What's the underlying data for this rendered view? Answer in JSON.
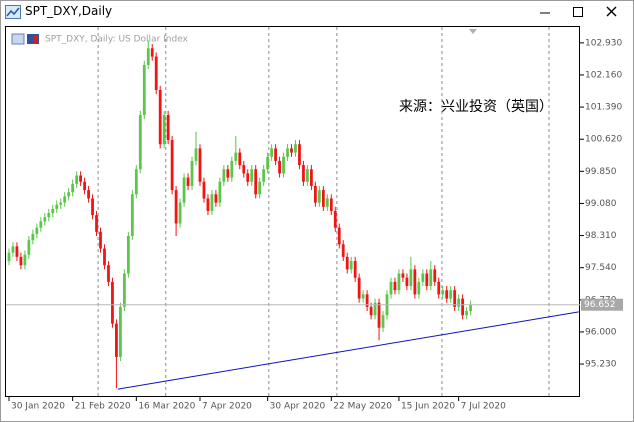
{
  "window_title": "SPT_DXY,Daily",
  "chart_data": {
    "type": "candlestick",
    "title": "SPT_DXY, Daily:  US Dollar Index",
    "annotation": "来源：兴业投资（英国）",
    "up_color": "#5cc64a",
    "down_color": "#f01414",
    "xlim": [
      -0.75,
      143.5
    ],
    "ylim": [
      94.44,
      103.31
    ],
    "xticks": [
      {
        "value": 0,
        "label": "30 Jan 2020"
      },
      {
        "value": 16,
        "label": "21 Feb 2020"
      },
      {
        "value": 32,
        "label": "16 Mar 2020"
      },
      {
        "value": 48,
        "label": "7 Apr 2020"
      },
      {
        "value": 65,
        "label": "30 Apr 2020"
      },
      {
        "value": 81,
        "label": "22 May 2020"
      },
      {
        "value": 98,
        "label": "15 Jun 2020"
      },
      {
        "value": 113,
        "label": "7 Jul 2020"
      }
    ],
    "xgrid": [
      22.4,
      39.4,
      65.3,
      82.4,
      108.8,
      135.7
    ],
    "yticks": [
      {
        "value": 102.93,
        "label": "102.930"
      },
      {
        "value": 102.16,
        "label": "102.160"
      },
      {
        "value": 101.39,
        "label": "101.390"
      },
      {
        "value": 100.62,
        "label": "100.620"
      },
      {
        "value": 99.85,
        "label": "99.850"
      },
      {
        "value": 99.08,
        "label": "99.080"
      },
      {
        "value": 98.31,
        "label": "98.310"
      },
      {
        "value": 97.54,
        "label": "97.540"
      },
      {
        "value": 96.77,
        "label": "96.770"
      },
      {
        "value": 96.0,
        "label": "96.000"
      },
      {
        "value": 95.23,
        "label": "95.230"
      }
    ],
    "last_price": 96.652,
    "trendline": {
      "x": [
        27.4,
        143.2
      ],
      "values": [
        94.63,
        96.48
      ],
      "color": "#1010c0"
    },
    "candles": [
      [
        97.7,
        98.0,
        97.6,
        97.9
      ],
      [
        97.9,
        98.15,
        97.8,
        98.05
      ],
      [
        98.05,
        98.15,
        97.7,
        97.8
      ],
      [
        97.8,
        97.9,
        97.5,
        97.6
      ],
      [
        97.6,
        97.95,
        97.5,
        97.85
      ],
      [
        97.85,
        98.3,
        97.75,
        98.2
      ],
      [
        98.2,
        98.45,
        98.1,
        98.35
      ],
      [
        98.35,
        98.6,
        98.25,
        98.5
      ],
      [
        98.5,
        98.75,
        98.4,
        98.65
      ],
      [
        98.65,
        98.85,
        98.55,
        98.75
      ],
      [
        98.75,
        98.95,
        98.65,
        98.85
      ],
      [
        98.85,
        99.05,
        98.75,
        98.95
      ],
      [
        98.95,
        99.15,
        98.85,
        99.05
      ],
      [
        99.05,
        99.2,
        98.95,
        99.1
      ],
      [
        99.1,
        99.35,
        99.0,
        99.25
      ],
      [
        99.25,
        99.45,
        99.15,
        99.35
      ],
      [
        99.35,
        99.65,
        99.25,
        99.55
      ],
      [
        99.55,
        99.85,
        99.45,
        99.75
      ],
      [
        99.75,
        99.85,
        99.5,
        99.6
      ],
      [
        99.6,
        99.7,
        99.3,
        99.4
      ],
      [
        99.4,
        99.5,
        99.1,
        99.2
      ],
      [
        99.2,
        99.3,
        98.7,
        98.8
      ],
      [
        98.8,
        98.9,
        98.3,
        98.4
      ],
      [
        98.4,
        98.5,
        97.9,
        98.0
      ],
      [
        98.0,
        98.1,
        97.5,
        97.6
      ],
      [
        97.6,
        97.7,
        97.1,
        97.2
      ],
      [
        97.2,
        97.3,
        96.1,
        96.2
      ],
      [
        96.2,
        96.3,
        94.65,
        95.4
      ],
      [
        95.4,
        96.7,
        95.3,
        96.6
      ],
      [
        96.6,
        97.5,
        96.5,
        97.4
      ],
      [
        97.4,
        98.4,
        97.3,
        98.3
      ],
      [
        98.3,
        99.4,
        98.2,
        99.3
      ],
      [
        99.3,
        100.0,
        99.2,
        99.9
      ],
      [
        99.9,
        101.3,
        99.8,
        101.2
      ],
      [
        101.2,
        102.5,
        101.1,
        102.4
      ],
      [
        102.4,
        102.99,
        102.3,
        102.8
      ],
      [
        102.8,
        102.9,
        102.5,
        102.6
      ],
      [
        102.6,
        102.7,
        101.7,
        101.8
      ],
      [
        101.8,
        101.9,
        100.4,
        100.5
      ],
      [
        100.5,
        101.3,
        100.4,
        101.2
      ],
      [
        101.2,
        101.3,
        100.5,
        100.6
      ],
      [
        100.6,
        100.7,
        99.3,
        99.4
      ],
      [
        99.4,
        99.5,
        98.3,
        98.6
      ],
      [
        98.6,
        99.2,
        98.5,
        99.1
      ],
      [
        99.1,
        99.8,
        99.0,
        99.7
      ],
      [
        99.7,
        99.8,
        99.4,
        99.5
      ],
      [
        99.5,
        100.2,
        99.4,
        100.1
      ],
      [
        100.1,
        100.8,
        100.0,
        100.4
      ],
      [
        100.4,
        100.5,
        99.5,
        99.6
      ],
      [
        99.6,
        99.7,
        99.1,
        99.2
      ],
      [
        99.2,
        99.3,
        98.8,
        98.9
      ],
      [
        98.9,
        99.4,
        98.8,
        99.3
      ],
      [
        99.3,
        99.4,
        99.0,
        99.1
      ],
      [
        99.1,
        99.7,
        99.0,
        99.6
      ],
      [
        99.6,
        100.0,
        99.5,
        99.9
      ],
      [
        99.9,
        100.0,
        99.6,
        99.7
      ],
      [
        99.7,
        100.2,
        99.6,
        100.1
      ],
      [
        100.1,
        100.7,
        100.0,
        100.3
      ],
      [
        100.3,
        100.4,
        99.9,
        100.0
      ],
      [
        100.0,
        100.1,
        99.7,
        99.8
      ],
      [
        99.8,
        99.9,
        99.5,
        99.6
      ],
      [
        99.6,
        100.0,
        99.5,
        99.9
      ],
      [
        99.9,
        100.0,
        99.2,
        99.3
      ],
      [
        99.3,
        99.7,
        99.2,
        99.6
      ],
      [
        99.6,
        100.0,
        99.5,
        99.9
      ],
      [
        99.9,
        100.3,
        99.8,
        100.2
      ],
      [
        100.2,
        100.5,
        100.1,
        100.4
      ],
      [
        100.4,
        100.5,
        100.0,
        100.1
      ],
      [
        100.1,
        100.2,
        99.7,
        99.8
      ],
      [
        99.8,
        100.3,
        99.7,
        100.2
      ],
      [
        100.2,
        100.5,
        100.1,
        100.4
      ],
      [
        100.4,
        100.5,
        100.2,
        100.3
      ],
      [
        100.3,
        100.6,
        100.2,
        100.5
      ],
      [
        100.5,
        100.6,
        99.9,
        100.0
      ],
      [
        100.0,
        100.1,
        99.5,
        99.6
      ],
      [
        99.6,
        100.0,
        99.5,
        99.9
      ],
      [
        99.9,
        100.0,
        99.4,
        99.5
      ],
      [
        99.5,
        99.6,
        99.0,
        99.1
      ],
      [
        99.1,
        99.5,
        99.0,
        99.4
      ],
      [
        99.4,
        99.5,
        98.9,
        99.0
      ],
      [
        99.0,
        99.3,
        98.9,
        99.2
      ],
      [
        99.2,
        99.3,
        98.8,
        98.9
      ],
      [
        98.9,
        99.0,
        98.4,
        98.5
      ],
      [
        98.5,
        98.6,
        98.0,
        98.1
      ],
      [
        98.1,
        98.2,
        97.7,
        97.8
      ],
      [
        97.8,
        97.9,
        97.4,
        97.5
      ],
      [
        97.5,
        97.8,
        97.4,
        97.7
      ],
      [
        97.7,
        97.8,
        97.2,
        97.3
      ],
      [
        97.3,
        97.4,
        96.7,
        96.8
      ],
      [
        96.8,
        97.0,
        96.7,
        96.9
      ],
      [
        96.9,
        97.0,
        96.5,
        96.6
      ],
      [
        96.6,
        96.7,
        96.3,
        96.4
      ],
      [
        96.4,
        96.8,
        96.3,
        96.7
      ],
      [
        96.7,
        96.8,
        95.8,
        96.1
      ],
      [
        96.1,
        96.5,
        96.0,
        96.4
      ],
      [
        96.4,
        97.0,
        96.3,
        96.9
      ],
      [
        96.9,
        97.3,
        96.8,
        97.2
      ],
      [
        97.2,
        97.3,
        96.9,
        97.0
      ],
      [
        97.0,
        97.5,
        96.9,
        97.4
      ],
      [
        97.4,
        97.5,
        97.2,
        97.3
      ],
      [
        97.3,
        97.4,
        97.0,
        97.1
      ],
      [
        97.1,
        97.8,
        97.0,
        97.5
      ],
      [
        97.5,
        97.6,
        96.8,
        96.9
      ],
      [
        96.9,
        97.3,
        96.8,
        97.2
      ],
      [
        97.2,
        97.5,
        97.1,
        97.4
      ],
      [
        97.4,
        97.5,
        97.0,
        97.1
      ],
      [
        97.1,
        97.7,
        97.0,
        97.5
      ],
      [
        97.5,
        97.6,
        97.1,
        97.2
      ],
      [
        97.2,
        97.3,
        96.8,
        96.9
      ],
      [
        96.9,
        97.1,
        96.8,
        97.0
      ],
      [
        97.0,
        97.1,
        96.7,
        96.8
      ],
      [
        96.8,
        97.1,
        96.7,
        97.0
      ],
      [
        97.0,
        97.1,
        96.5,
        96.6
      ],
      [
        96.6,
        96.9,
        96.5,
        96.8
      ],
      [
        96.8,
        96.9,
        96.3,
        96.4
      ],
      [
        96.4,
        96.6,
        96.3,
        96.5
      ],
      [
        96.5,
        96.75,
        96.4,
        96.65
      ]
    ]
  }
}
